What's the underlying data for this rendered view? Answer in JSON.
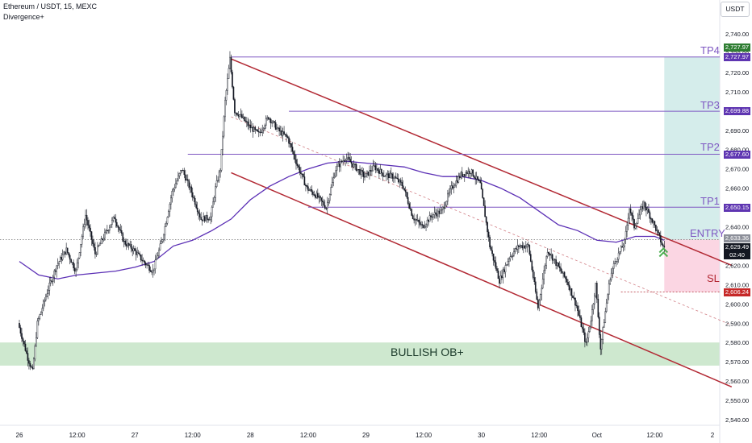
{
  "header": {
    "symbol": "Ethereum / USDT, 15, MEXC",
    "indicator": "Divergence+"
  },
  "currency_button": "USDT",
  "labels": {
    "tp4": "TP4",
    "tp3": "TP3",
    "tp2": "TP2",
    "tp1": "TP1",
    "entry": "ENTRY",
    "sl": "SL",
    "ob": "BULLISH OB+"
  },
  "price_tags": {
    "tp4_top": "2,727.97",
    "tp4": "2,727.97",
    "tp3": "2,699.88",
    "tp2": "2,677.60",
    "tp1": "2,650.15",
    "entry": "2,633.36",
    "last": "2,629.49",
    "countdown": "02:40",
    "sl": "2,606.24"
  },
  "colors": {
    "tp_line": "#7e57c2",
    "channel": "#b22833",
    "ma": "#5b2fb5",
    "ob_zone": "#a5d6a7",
    "profit_zone": "#b2dfdb",
    "loss_zone": "#f8bbd0",
    "candle": "#131722",
    "sl_text": "#b22833",
    "entry_text": "#7e57c2",
    "tag_purple": "#5e35b1",
    "tag_green": "#2e7d32",
    "tag_red": "#c62828",
    "tag_gray": "#8c8f99",
    "tag_black": "#131722",
    "arrow": "#4caf50"
  },
  "chart_data": {
    "type": "candlestick",
    "title": "Ethereum / USDT, 15, MEXC",
    "ylim": [
      2535,
      2745
    ],
    "y_ticks": [
      2540,
      2550,
      2560,
      2570,
      2580,
      2590,
      2600,
      2610,
      2620,
      2630,
      2640,
      2650,
      2660,
      2670,
      2680,
      2690,
      2700,
      2710,
      2720,
      2730,
      2740
    ],
    "x_ticks": [
      "26",
      "12:00",
      "27",
      "12:00",
      "28",
      "12:00",
      "29",
      "12:00",
      "30",
      "12:00",
      "Oct",
      "12:00",
      "2"
    ],
    "x_tick_hours": [
      0,
      12,
      24,
      36,
      48,
      60,
      72,
      84,
      96,
      108,
      120,
      132,
      144
    ],
    "last_hour": 134,
    "price_path": [
      [
        0,
        2590
      ],
      [
        2,
        2572
      ],
      [
        3,
        2565
      ],
      [
        4,
        2590
      ],
      [
        6,
        2606
      ],
      [
        8,
        2620
      ],
      [
        10,
        2628
      ],
      [
        12,
        2617
      ],
      [
        14,
        2646
      ],
      [
        16,
        2626
      ],
      [
        18,
        2636
      ],
      [
        20,
        2645
      ],
      [
        22,
        2632
      ],
      [
        24,
        2628
      ],
      [
        26,
        2622
      ],
      [
        28,
        2617
      ],
      [
        30,
        2634
      ],
      [
        32,
        2658
      ],
      [
        34,
        2670
      ],
      [
        36,
        2658
      ],
      [
        38,
        2644
      ],
      [
        40,
        2645
      ],
      [
        41,
        2660
      ],
      [
        42,
        2670
      ],
      [
        43,
        2705
      ],
      [
        44,
        2727
      ],
      [
        45,
        2700
      ],
      [
        46,
        2698
      ],
      [
        48,
        2692
      ],
      [
        50,
        2688
      ],
      [
        52,
        2697
      ],
      [
        54,
        2690
      ],
      [
        56,
        2686
      ],
      [
        58,
        2672
      ],
      [
        60,
        2660
      ],
      [
        62,
        2656
      ],
      [
        64,
        2650
      ],
      [
        66,
        2670
      ],
      [
        68,
        2676
      ],
      [
        70,
        2671
      ],
      [
        72,
        2666
      ],
      [
        74,
        2671
      ],
      [
        76,
        2667
      ],
      [
        78,
        2666
      ],
      [
        80,
        2661
      ],
      [
        82,
        2645
      ],
      [
        84,
        2640
      ],
      [
        86,
        2646
      ],
      [
        88,
        2648
      ],
      [
        90,
        2660
      ],
      [
        92,
        2667
      ],
      [
        94,
        2669
      ],
      [
        96,
        2662
      ],
      [
        98,
        2630
      ],
      [
        100,
        2612
      ],
      [
        102,
        2624
      ],
      [
        104,
        2630
      ],
      [
        106,
        2630
      ],
      [
        108,
        2598
      ],
      [
        110,
        2628
      ],
      [
        112,
        2620
      ],
      [
        114,
        2612
      ],
      [
        116,
        2599
      ],
      [
        118,
        2579
      ],
      [
        119,
        2592
      ],
      [
        120,
        2610
      ],
      [
        121,
        2577
      ],
      [
        122,
        2596
      ],
      [
        123,
        2614
      ],
      [
        124,
        2622
      ],
      [
        126,
        2632
      ],
      [
        127,
        2650
      ],
      [
        128,
        2640
      ],
      [
        130,
        2652
      ],
      [
        132,
        2642
      ],
      [
        134,
        2629.49
      ]
    ],
    "ma_path": [
      [
        0,
        2622
      ],
      [
        4,
        2615
      ],
      [
        8,
        2613
      ],
      [
        12,
        2615
      ],
      [
        16,
        2616
      ],
      [
        20,
        2617
      ],
      [
        24,
        2619
      ],
      [
        28,
        2622
      ],
      [
        32,
        2630
      ],
      [
        36,
        2633
      ],
      [
        40,
        2638
      ],
      [
        44,
        2644
      ],
      [
        48,
        2654
      ],
      [
        52,
        2661
      ],
      [
        56,
        2666
      ],
      [
        60,
        2670
      ],
      [
        64,
        2673
      ],
      [
        68,
        2674
      ],
      [
        72,
        2673
      ],
      [
        76,
        2672
      ],
      [
        80,
        2671
      ],
      [
        84,
        2668
      ],
      [
        88,
        2666
      ],
      [
        92,
        2666
      ],
      [
        96,
        2664
      ],
      [
        100,
        2660
      ],
      [
        104,
        2655
      ],
      [
        108,
        2648
      ],
      [
        112,
        2641
      ],
      [
        116,
        2638
      ],
      [
        120,
        2633
      ],
      [
        124,
        2632
      ],
      [
        128,
        2635
      ],
      [
        132,
        2635
      ],
      [
        134,
        2633
      ]
    ],
    "levels": [
      {
        "label": "TP4",
        "price": 2727.97,
        "from_hour": 44
      },
      {
        "label": "TP3",
        "price": 2699.88,
        "from_hour": 56
      },
      {
        "label": "TP2",
        "price": 2677.6,
        "from_hour": 35
      },
      {
        "label": "TP1",
        "price": 2650.15,
        "from_hour": 60
      },
      {
        "label": "ENTRY",
        "price": 2633.36
      },
      {
        "label": "SL",
        "price": 2606.24,
        "from_hour": 125
      }
    ],
    "channel_upper": [
      [
        44,
        2727
      ],
      [
        148,
        2620
      ]
    ],
    "channel_lower": [
      [
        44,
        2668
      ],
      [
        148,
        2557
      ]
    ],
    "channel_mid": [
      [
        44,
        2697
      ],
      [
        148,
        2589
      ]
    ],
    "ob_zone": [
      2568,
      2580
    ],
    "profit_zone": {
      "from_hour": 134,
      "low": 2633.36,
      "high": 2727.97
    },
    "loss_zone": {
      "from_hour": 134,
      "low": 2606.24,
      "high": 2633.36
    }
  }
}
